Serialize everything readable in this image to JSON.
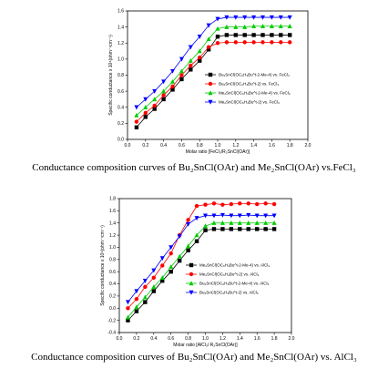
{
  "chart_data": [
    {
      "type": "line",
      "caption": "Conductance composition curves of Bu₂SnCl(OAr) and Me₂SnCl(OAr) vs.FeCl₃",
      "xlabel": "Molar ratio [FeCl₃/R₂SnCl(OAr)]",
      "ylabel": "Specific conductance x 10⁴(ohm⁻¹cm⁻¹)",
      "xlim": [
        0.0,
        2.0
      ],
      "ylim": [
        0.0,
        1.6
      ],
      "xticks": [
        "0.0",
        "0.2",
        "0.4",
        "0.6",
        "0.8",
        "1.0",
        "1.2",
        "1.4",
        "1.6",
        "1.8",
        "2.0"
      ],
      "yticks": [
        "0.0",
        "0.2",
        "0.4",
        "0.6",
        "0.8",
        "1.0",
        "1.2",
        "1.4",
        "1.6"
      ],
      "legend_position": "right",
      "x": [
        0.1,
        0.2,
        0.3,
        0.4,
        0.5,
        0.6,
        0.7,
        0.8,
        0.9,
        1.0,
        1.1,
        1.2,
        1.3,
        1.4,
        1.5,
        1.6,
        1.7,
        1.8
      ],
      "series": [
        {
          "name": "Bu₂SnCl(OC₆H₃Bu^t-2-Me-4) vs. FeCl₃",
          "color": "#000000",
          "marker": "square",
          "values": [
            0.15,
            0.28,
            0.38,
            0.5,
            0.62,
            0.75,
            0.87,
            0.98,
            1.12,
            1.28,
            1.3,
            1.3,
            1.3,
            1.3,
            1.3,
            1.3,
            1.3,
            1.3
          ]
        },
        {
          "name": "Bu₂SnCl(OC₆H₄Bu^t-2) vs. FeCl₃",
          "color": "#ff0000",
          "marker": "circle",
          "values": [
            0.22,
            0.33,
            0.42,
            0.55,
            0.66,
            0.8,
            0.92,
            1.02,
            1.15,
            1.2,
            1.21,
            1.21,
            1.21,
            1.21,
            1.21,
            1.21,
            1.21,
            1.21
          ]
        },
        {
          "name": "Me₂SnCl(OC₆H₃Bu^t-2-Me-4) vs. FeCl₃",
          "color": "#00cc00",
          "marker": "triangle-up",
          "values": [
            0.3,
            0.4,
            0.5,
            0.6,
            0.72,
            0.85,
            0.98,
            1.1,
            1.25,
            1.38,
            1.4,
            1.4,
            1.4,
            1.41,
            1.41,
            1.41,
            1.41,
            1.41
          ]
        },
        {
          "name": "Me₂SnCl(OC₆H₄Bu^t-2) vs. FeCl₃",
          "color": "#0000ff",
          "marker": "triangle-down",
          "values": [
            0.4,
            0.5,
            0.6,
            0.72,
            0.85,
            1.0,
            1.15,
            1.28,
            1.42,
            1.5,
            1.52,
            1.52,
            1.52,
            1.52,
            1.52,
            1.52,
            1.52,
            1.52
          ]
        }
      ]
    },
    {
      "type": "line",
      "caption": "Conductance composition curves of Bu₂SnCl(OAr) and Me₂SnCl(OAr) vs. AlCl₃",
      "xlabel": "Molar ratio [AlCl₃/ R₂SnCl(OAr)]",
      "ylabel": "Specific conductance x 10⁴(ohm⁻¹cm⁻¹)",
      "xlim": [
        0.0,
        2.0
      ],
      "ylim": [
        -0.4,
        1.8
      ],
      "xticks": [
        "0.0",
        "0.2",
        "0.4",
        "0.6",
        "0.8",
        "1.0",
        "1.2",
        "1.4",
        "1.6",
        "1.8",
        "2.0"
      ],
      "yticks": [
        "-0.4",
        "-0.2",
        "0.0",
        "0.2",
        "0.4",
        "0.6",
        "0.8",
        "1.0",
        "1.2",
        "1.4",
        "1.6",
        "1.8"
      ],
      "legend_position": "right",
      "x": [
        0.1,
        0.2,
        0.3,
        0.4,
        0.5,
        0.6,
        0.7,
        0.8,
        0.9,
        1.0,
        1.1,
        1.2,
        1.3,
        1.4,
        1.5,
        1.6,
        1.7,
        1.8
      ],
      "series": [
        {
          "name": "Me₂SnCl(OC₆H₃Bu^t-2-Me-4) vs. AlCl₃",
          "color": "#000000",
          "marker": "square",
          "values": [
            -0.2,
            -0.05,
            0.1,
            0.28,
            0.45,
            0.6,
            0.78,
            0.95,
            1.1,
            1.28,
            1.3,
            1.3,
            1.3,
            1.3,
            1.3,
            1.3,
            1.3,
            1.3
          ]
        },
        {
          "name": "Me₂SnCl(OC₆H₄Bu^t-2) vs. AlCl₃",
          "color": "#ff0000",
          "marker": "circle",
          "values": [
            0.0,
            0.15,
            0.35,
            0.5,
            0.7,
            0.9,
            1.2,
            1.45,
            1.68,
            1.7,
            1.72,
            1.7,
            1.71,
            1.72,
            1.72,
            1.71,
            1.72,
            1.71
          ]
        },
        {
          "name": "Bu₂SnCl(OC₆H₃Bu^t-2-Me-4) vs. AlCl₃",
          "color": "#00cc00",
          "marker": "triangle-up",
          "values": [
            -0.15,
            0.02,
            0.18,
            0.35,
            0.5,
            0.68,
            0.85,
            1.02,
            1.2,
            1.35,
            1.4,
            1.4,
            1.4,
            1.4,
            1.4,
            1.4,
            1.4,
            1.4
          ]
        },
        {
          "name": "Bu₂SnCl(OC₆H₄Bu^t-2) vs. AlCl₃",
          "color": "#0000ff",
          "marker": "triangle-down",
          "values": [
            0.1,
            0.28,
            0.45,
            0.62,
            0.82,
            1.0,
            1.18,
            1.38,
            1.48,
            1.52,
            1.52,
            1.53,
            1.52,
            1.52,
            1.53,
            1.52,
            1.52,
            1.52
          ]
        }
      ]
    }
  ]
}
